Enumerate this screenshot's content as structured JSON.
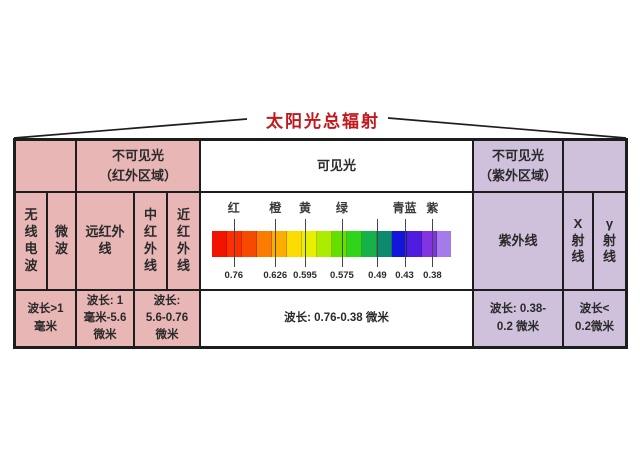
{
  "title": "太阳光总辐射",
  "colors": {
    "pink": "#e9b6b6",
    "purple": "#cfc0dc",
    "line": "#1d1d1d",
    "title_red": "#c4171c"
  },
  "header_row": {
    "left_blank": "",
    "infrared": "不可见光\n（红外区域）",
    "visible": "可见光",
    "ultraviolet": "不可见光\n（紫外区域）",
    "right_blank": ""
  },
  "bands_row": {
    "radio": "无\n线\n电\n波",
    "microwave": "微\n波",
    "far_infrared": "远红外\n线",
    "mid_infrared": "中\n红\n外\n线",
    "near_infrared": "近\n红\n外\n线",
    "ultraviolet": "紫外线",
    "xray": "X\n射\n线",
    "gamma": "γ\n射\n线"
  },
  "wavelength_row": {
    "radio_microwave": "波长>1\n毫米",
    "far_infrared": "波长: 1\n毫米-5.6\n微米",
    "mid_near_infrared": "波长:\n5.6-0.76\n微米",
    "visible": "波长: 0.76-0.38 微米",
    "ultraviolet": "波长: 0.38-\n0.2 微米",
    "xray_gamma": "波长<\n0.2微米"
  },
  "spectrum": {
    "bar_left_pct": 3.9,
    "bar_width_pct": 88.3,
    "segments": [
      "#f21300",
      "#fb2f00",
      "#f54a00",
      "#fa7c00",
      "#fcae00",
      "#fbdc00",
      "#e6f000",
      "#abec00",
      "#63df00",
      "#2fd31a",
      "#14b248",
      "#0d8a6e",
      "#1414dc",
      "#4f1ce0",
      "#8233e2",
      "#a47ce9"
    ],
    "color_labels": [
      {
        "t": "红",
        "p": 12.1
      },
      {
        "t": "橙",
        "p": 27.4
      },
      {
        "t": "黄",
        "p": 38.4
      },
      {
        "t": "绿",
        "p": 52.0
      },
      {
        "t": "青蓝",
        "p": 75.1
      },
      {
        "t": "紫",
        "p": 85.4
      }
    ],
    "ticks": [
      {
        "v": "0.76",
        "p": 12.1
      },
      {
        "v": "0.626",
        "p": 27.4
      },
      {
        "v": "0.595",
        "p": 38.4
      },
      {
        "v": "0.575",
        "p": 52.0
      },
      {
        "v": "0.49",
        "p": 65.1
      },
      {
        "v": "0.43",
        "p": 75.1
      },
      {
        "v": "0.38",
        "p": 85.4
      }
    ]
  }
}
